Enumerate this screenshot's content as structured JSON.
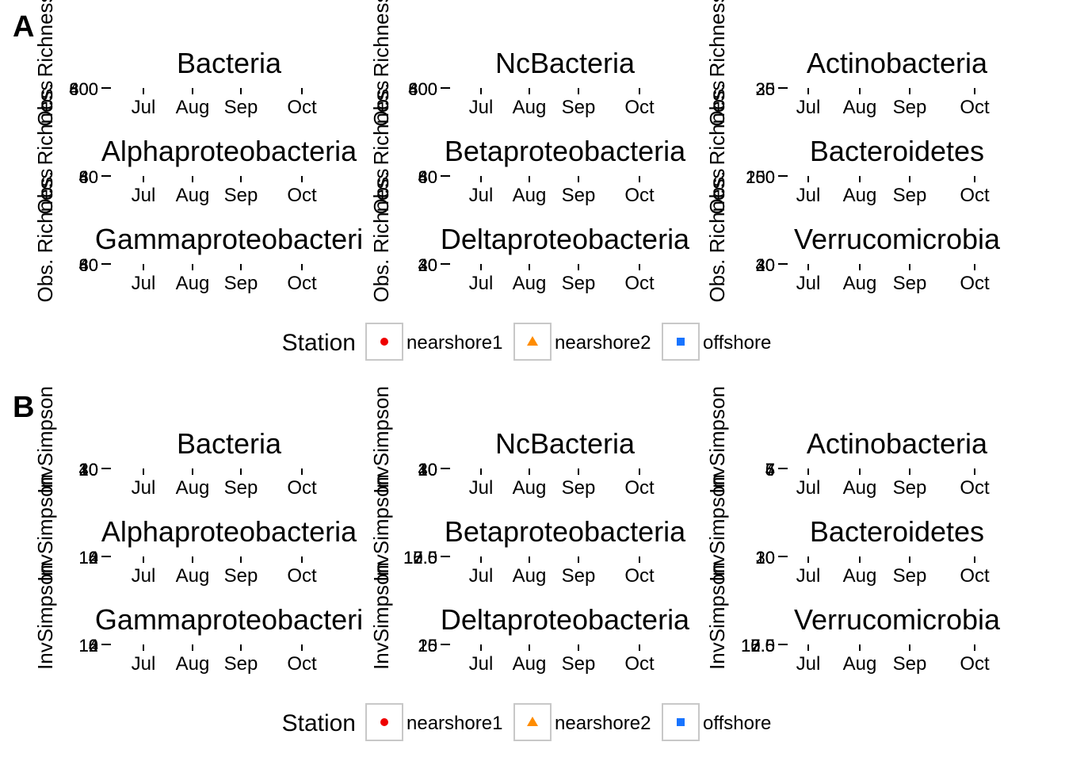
{
  "panels": [
    {
      "letter": "A",
      "ylabel": "Obs. Richness",
      "legend": {
        "title": "Station",
        "entries": [
          {
            "label": "nearshore1",
            "shape": "circle",
            "color": "#EE0000"
          },
          {
            "label": "nearshore2",
            "shape": "triangle",
            "color": "#FF8C00"
          },
          {
            "label": "offshore",
            "shape": "square",
            "color": "#1874FF"
          }
        ]
      }
    },
    {
      "letter": "B",
      "ylabel": "InvSimpson",
      "legend": {
        "title": "Station",
        "entries": [
          {
            "label": "nearshore1",
            "shape": "circle",
            "color": "#EE0000"
          },
          {
            "label": "nearshore2",
            "shape": "triangle",
            "color": "#FF8C00"
          },
          {
            "label": "offshore",
            "shape": "square",
            "color": "#1874FF"
          }
        ]
      }
    }
  ],
  "chart_data": [
    {
      "type": "scatter",
      "panel": "A",
      "ylabel": "Obs. Richness",
      "x_ticks": [
        "Jul",
        "Aug",
        "Sep",
        "Oct"
      ],
      "facets": [
        {
          "title": "Bacteria",
          "y_tick_labels": [
            "400",
            "600",
            "800"
          ]
        },
        {
          "title": "NcBacteria",
          "y_tick_labels": [
            "400",
            "600",
            "800"
          ]
        },
        {
          "title": "Actinobacteria",
          "y_tick_labels": [
            "25",
            "30",
            "35"
          ]
        },
        {
          "title": "Alphaproteobacteria",
          "y_tick_labels": [
            "40",
            "60",
            "80"
          ]
        },
        {
          "title": "Betaproteobacteria",
          "y_tick_labels": [
            "40",
            "60",
            "80"
          ]
        },
        {
          "title": "Bacteroidetes",
          "y_tick_labels": [
            "150",
            "200",
            "250"
          ]
        },
        {
          "title": "Gammaproteobacteri",
          "y_tick_labels": [
            "40",
            "60",
            "80"
          ]
        },
        {
          "title": "Deltaproteobacteria",
          "y_tick_labels": [
            "20",
            "30",
            "40"
          ]
        },
        {
          "title": "Verrucomicrobia",
          "y_tick_labels": [
            "20",
            "30",
            "40"
          ]
        }
      ],
      "series": [
        {
          "name": "nearshore1"
        },
        {
          "name": "nearshore2"
        },
        {
          "name": "offshore"
        }
      ]
    },
    {
      "type": "scatter",
      "panel": "B",
      "ylabel": "InvSimpson",
      "x_ticks": [
        "Jul",
        "Aug",
        "Sep",
        "Oct"
      ],
      "facets": [
        {
          "title": "Bacteria",
          "y_tick_labels": [
            "10",
            "20",
            "30",
            "40"
          ]
        },
        {
          "title": "NcBacteria",
          "y_tick_labels": [
            "10",
            "20",
            "30",
            "40"
          ]
        },
        {
          "title": "Actinobacteria",
          "y_tick_labels": [
            "4",
            "5",
            "6",
            "7"
          ]
        },
        {
          "title": "Alphaproteobacteria",
          "y_tick_labels": [
            "10",
            "12",
            "14",
            "16"
          ]
        },
        {
          "title": "Betaproteobacteria",
          "y_tick_labels": [
            "10.0",
            "12.5",
            "15.0",
            "17.5"
          ]
        },
        {
          "title": "Bacteroidetes",
          "y_tick_labels": [
            "10",
            "20",
            "30"
          ]
        },
        {
          "title": "Gammaproteobacteri",
          "y_tick_labels": [
            "10",
            "12",
            "14",
            "16"
          ]
        },
        {
          "title": "Deltaproteobacteria",
          "y_tick_labels": [
            "15",
            "20",
            "25"
          ]
        },
        {
          "title": "Verrucomicrobia",
          "y_tick_labels": [
            "10.0",
            "12.5",
            "15.0",
            "17.5"
          ]
        }
      ],
      "series": [
        {
          "name": "nearshore1"
        },
        {
          "name": "nearshore2"
        },
        {
          "name": "offshore"
        }
      ]
    }
  ]
}
